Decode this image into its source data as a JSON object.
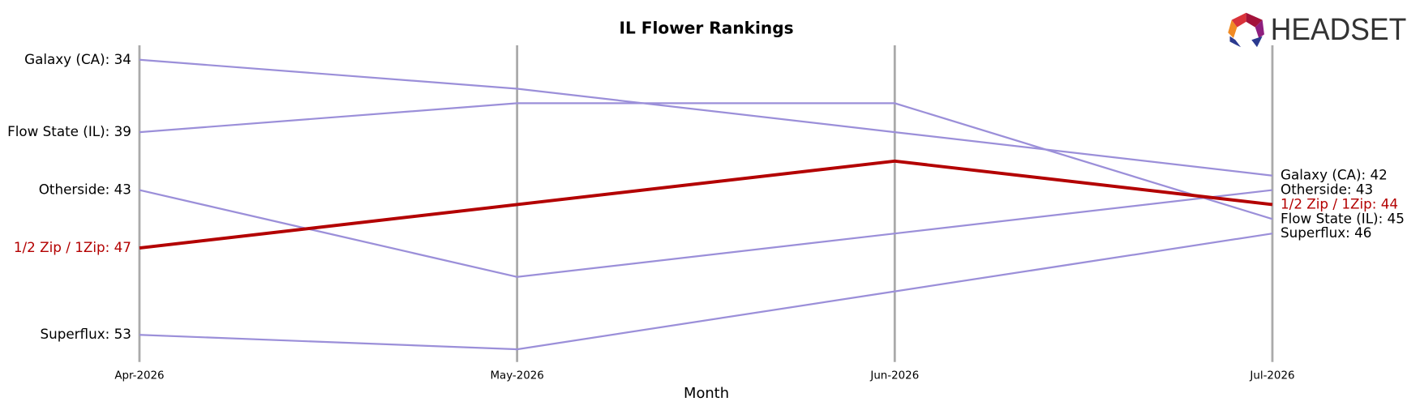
{
  "chart_data": {
    "type": "bump",
    "title": "IL Flower Rankings",
    "x_label": "Month",
    "logo": "HEADSET",
    "categories": [
      "Apr-2026",
      "May-2026",
      "Jun-2026",
      "Jul-2026"
    ],
    "ylim": [
      55,
      33
    ],
    "grid": true,
    "series": [
      {
        "color": "#9b8fd9",
        "width": 2,
        "values": [
          34,
          36,
          39,
          42
        ],
        "value_labels": [
          "Galaxy (CA): 34",
          null,
          null,
          "Galaxy (CA): 42"
        ]
      },
      {
        "color": "#9b8fd9",
        "width": 2,
        "values": [
          39,
          37,
          37,
          45
        ],
        "value_labels": [
          "Flow State (IL): 39",
          null,
          null,
          "Flow State (IL): 45"
        ]
      },
      {
        "color": "#9b8fd9",
        "width": 2,
        "values": [
          43,
          49,
          46,
          43
        ],
        "value_labels": [
          "Otherside: 43",
          null,
          null,
          "Otherside: 43"
        ]
      },
      {
        "color": "#9b8fd9",
        "width": 2,
        "values": [
          53,
          54,
          50,
          46
        ],
        "value_labels": [
          "Superflux: 53",
          null,
          null,
          "Superflux: 46"
        ]
      },
      {
        "color": "#b30000",
        "width": 3.5,
        "values": [
          47,
          44,
          41,
          44
        ],
        "value_labels": [
          "1/2 Zip / 1Zip: 47",
          null,
          null,
          "1/2 Zip / 1Zip: 44"
        ]
      }
    ]
  }
}
